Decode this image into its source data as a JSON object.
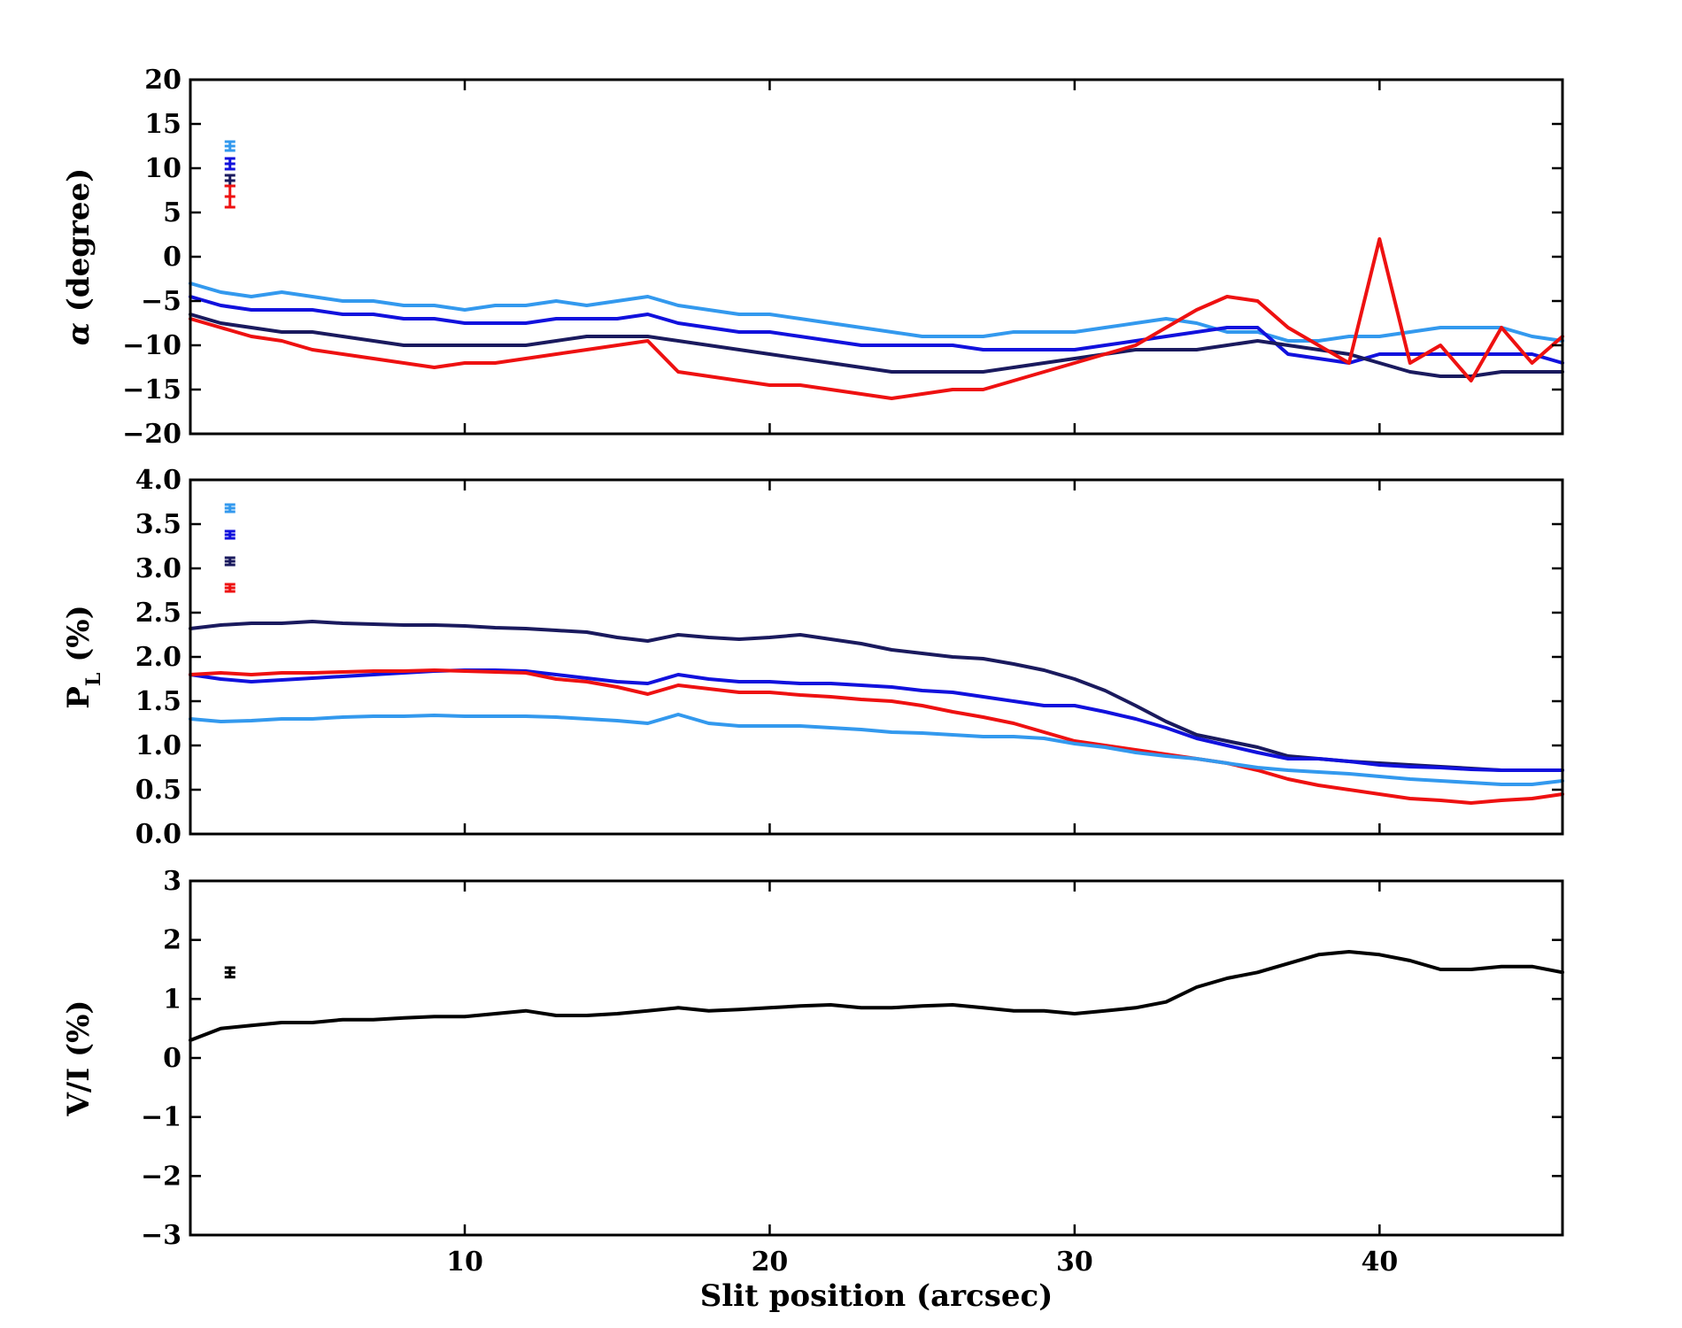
{
  "chart_data": [
    {
      "type": "line",
      "id": "alpha",
      "ylabel_parts": [
        "α",
        " (degree)"
      ],
      "xlim": [
        1,
        46
      ],
      "ylim": [
        -20,
        20
      ],
      "yticks": [
        -20,
        -15,
        -10,
        -5,
        0,
        5,
        10,
        15,
        20
      ],
      "yticklabels": [
        "−20",
        "−15",
        "−10",
        "−5",
        "0",
        "5",
        "10",
        "15",
        "20"
      ],
      "xticks": [
        10,
        20,
        30,
        40
      ],
      "show_xticklabels": false,
      "series": [
        {
          "name": "light-blue",
          "color": "#3399ee",
          "x": [
            1,
            2,
            3,
            4,
            5,
            6,
            7,
            8,
            9,
            10,
            11,
            12,
            13,
            14,
            15,
            16,
            17,
            18,
            19,
            20,
            21,
            22,
            23,
            24,
            25,
            26,
            27,
            28,
            29,
            30,
            31,
            32,
            33,
            34,
            35,
            36,
            37,
            38,
            39,
            40,
            41,
            42,
            43,
            44,
            45,
            46
          ],
          "y": [
            -3,
            -4,
            -4.5,
            -4,
            -4.5,
            -5,
            -5,
            -5.5,
            -5.5,
            -6,
            -5.5,
            -5.5,
            -5,
            -5.5,
            -5,
            -4.5,
            -5.5,
            -6,
            -6.5,
            -6.5,
            -7,
            -7.5,
            -8,
            -8.5,
            -9,
            -9,
            -9,
            -8.5,
            -8.5,
            -8.5,
            -8,
            -7.5,
            -7,
            -7.5,
            -8.5,
            -8.5,
            -9.5,
            -9.5,
            -9,
            -9,
            -8.5,
            -8,
            -8,
            -8,
            -9,
            -9.5
          ]
        },
        {
          "name": "blue",
          "color": "#1111dd",
          "x": [
            1,
            2,
            3,
            4,
            5,
            6,
            7,
            8,
            9,
            10,
            11,
            12,
            13,
            14,
            15,
            16,
            17,
            18,
            19,
            20,
            21,
            22,
            23,
            24,
            25,
            26,
            27,
            28,
            29,
            30,
            31,
            32,
            33,
            34,
            35,
            36,
            37,
            38,
            39,
            40,
            41,
            42,
            43,
            44,
            45,
            46
          ],
          "y": [
            -4.5,
            -5.5,
            -6,
            -6,
            -6,
            -6.5,
            -6.5,
            -7,
            -7,
            -7.5,
            -7.5,
            -7.5,
            -7,
            -7,
            -7,
            -6.5,
            -7.5,
            -8,
            -8.5,
            -8.5,
            -9,
            -9.5,
            -10,
            -10,
            -10,
            -10,
            -10.5,
            -10.5,
            -10.5,
            -10.5,
            -10,
            -9.5,
            -9,
            -8.5,
            -8,
            -8,
            -11,
            -11.5,
            -12,
            -11,
            -11,
            -11,
            -11,
            -11,
            -11,
            -12
          ]
        },
        {
          "name": "navy",
          "color": "#1a1a5e",
          "x": [
            1,
            2,
            3,
            4,
            5,
            6,
            7,
            8,
            9,
            10,
            11,
            12,
            13,
            14,
            15,
            16,
            17,
            18,
            19,
            20,
            21,
            22,
            23,
            24,
            25,
            26,
            27,
            28,
            29,
            30,
            31,
            32,
            33,
            34,
            35,
            36,
            37,
            38,
            39,
            40,
            41,
            42,
            43,
            44,
            45,
            46
          ],
          "y": [
            -6.5,
            -7.5,
            -8,
            -8.5,
            -8.5,
            -9,
            -9.5,
            -10,
            -10,
            -10,
            -10,
            -10,
            -9.5,
            -9,
            -9,
            -9,
            -9.5,
            -10,
            -10.5,
            -11,
            -11.5,
            -12,
            -12.5,
            -13,
            -13,
            -13,
            -13,
            -12.5,
            -12,
            -11.5,
            -11,
            -10.5,
            -10.5,
            -10.5,
            -10,
            -9.5,
            -10,
            -10.5,
            -11,
            -12,
            -13,
            -13.5,
            -13.5,
            -13,
            -13,
            -13
          ]
        },
        {
          "name": "red",
          "color": "#ee1111",
          "x": [
            1,
            2,
            3,
            4,
            5,
            6,
            7,
            8,
            9,
            10,
            11,
            12,
            13,
            14,
            15,
            16,
            17,
            18,
            19,
            20,
            21,
            22,
            23,
            24,
            25,
            26,
            27,
            28,
            29,
            30,
            31,
            32,
            33,
            34,
            35,
            36,
            37,
            38,
            39,
            40,
            41,
            42,
            43,
            44,
            45,
            46
          ],
          "y": [
            -7,
            -8,
            -9,
            -9.5,
            -10.5,
            -11,
            -11.5,
            -12,
            -12.5,
            -12,
            -12,
            -11.5,
            -11,
            -10.5,
            -10,
            -9.5,
            -13,
            -13.5,
            -14,
            -14.5,
            -14.5,
            -15,
            -15.5,
            -16,
            -15.5,
            -15,
            -15,
            -14,
            -13,
            -12,
            -11,
            -10,
            -8,
            -6,
            -4.5,
            -5,
            -8,
            -10,
            -12,
            2,
            -12,
            -10,
            -14,
            -8,
            -12,
            -9
          ]
        }
      ],
      "errorbars": [
        {
          "color": "#3399ee",
          "y": 12.5,
          "err": 0.5
        },
        {
          "color": "#1111dd",
          "y": 10.5,
          "err": 0.6
        },
        {
          "color": "#1a1a5e",
          "y": 8.6,
          "err": 0.6
        },
        {
          "color": "#ee1111",
          "y": 6.8,
          "err": 1.2
        }
      ],
      "errorbar_x": 2.3
    },
    {
      "type": "line",
      "id": "polarization",
      "ylabel_parts": [
        "P",
        "L",
        " (%)"
      ],
      "xlim": [
        1,
        46
      ],
      "ylim": [
        0,
        4
      ],
      "yticks": [
        0,
        0.5,
        1,
        1.5,
        2,
        2.5,
        3,
        3.5,
        4
      ],
      "yticklabels": [
        "0.0",
        "0.5",
        "1.0",
        "1.5",
        "2.0",
        "2.5",
        "3.0",
        "3.5",
        "4.0"
      ],
      "xticks": [
        10,
        20,
        30,
        40
      ],
      "show_xticklabels": false,
      "series": [
        {
          "name": "navy",
          "color": "#1a1a5e",
          "x": [
            1,
            2,
            3,
            4,
            5,
            6,
            7,
            8,
            9,
            10,
            11,
            12,
            13,
            14,
            15,
            16,
            17,
            18,
            19,
            20,
            21,
            22,
            23,
            24,
            25,
            26,
            27,
            28,
            29,
            30,
            31,
            32,
            33,
            34,
            35,
            36,
            37,
            38,
            39,
            40,
            41,
            42,
            43,
            44,
            45,
            46
          ],
          "y": [
            2.32,
            2.36,
            2.38,
            2.38,
            2.4,
            2.38,
            2.37,
            2.36,
            2.36,
            2.35,
            2.33,
            2.32,
            2.3,
            2.28,
            2.22,
            2.18,
            2.25,
            2.22,
            2.2,
            2.22,
            2.25,
            2.2,
            2.15,
            2.08,
            2.04,
            2.0,
            1.98,
            1.92,
            1.85,
            1.75,
            1.62,
            1.45,
            1.27,
            1.12,
            1.05,
            0.98,
            0.88,
            0.85,
            0.82,
            0.8,
            0.78,
            0.76,
            0.74,
            0.72,
            0.72,
            0.72
          ]
        },
        {
          "name": "blue",
          "color": "#1111dd",
          "x": [
            1,
            2,
            3,
            4,
            5,
            6,
            7,
            8,
            9,
            10,
            11,
            12,
            13,
            14,
            15,
            16,
            17,
            18,
            19,
            20,
            21,
            22,
            23,
            24,
            25,
            26,
            27,
            28,
            29,
            30,
            31,
            32,
            33,
            34,
            35,
            36,
            37,
            38,
            39,
            40,
            41,
            42,
            43,
            44,
            45,
            46
          ],
          "y": [
            1.8,
            1.75,
            1.72,
            1.74,
            1.76,
            1.78,
            1.8,
            1.82,
            1.84,
            1.85,
            1.85,
            1.84,
            1.8,
            1.76,
            1.72,
            1.7,
            1.8,
            1.75,
            1.72,
            1.72,
            1.7,
            1.7,
            1.68,
            1.66,
            1.62,
            1.6,
            1.55,
            1.5,
            1.45,
            1.45,
            1.38,
            1.3,
            1.2,
            1.08,
            1.0,
            0.92,
            0.85,
            0.85,
            0.82,
            0.78,
            0.76,
            0.75,
            0.73,
            0.72,
            0.72,
            0.72
          ]
        },
        {
          "name": "red",
          "color": "#ee1111",
          "x": [
            1,
            2,
            3,
            4,
            5,
            6,
            7,
            8,
            9,
            10,
            11,
            12,
            13,
            14,
            15,
            16,
            17,
            18,
            19,
            20,
            21,
            22,
            23,
            24,
            25,
            26,
            27,
            28,
            29,
            30,
            31,
            32,
            33,
            34,
            35,
            36,
            37,
            38,
            39,
            40,
            41,
            42,
            43,
            44,
            45,
            46
          ],
          "y": [
            1.8,
            1.82,
            1.8,
            1.82,
            1.82,
            1.83,
            1.84,
            1.84,
            1.85,
            1.84,
            1.83,
            1.82,
            1.75,
            1.72,
            1.66,
            1.58,
            1.68,
            1.64,
            1.6,
            1.6,
            1.57,
            1.55,
            1.52,
            1.5,
            1.45,
            1.38,
            1.32,
            1.25,
            1.15,
            1.05,
            1.0,
            0.95,
            0.9,
            0.85,
            0.8,
            0.72,
            0.62,
            0.55,
            0.5,
            0.45,
            0.4,
            0.38,
            0.35,
            0.38,
            0.4,
            0.45
          ]
        },
        {
          "name": "light-blue",
          "color": "#3399ee",
          "x": [
            1,
            2,
            3,
            4,
            5,
            6,
            7,
            8,
            9,
            10,
            11,
            12,
            13,
            14,
            15,
            16,
            17,
            18,
            19,
            20,
            21,
            22,
            23,
            24,
            25,
            26,
            27,
            28,
            29,
            30,
            31,
            32,
            33,
            34,
            35,
            36,
            37,
            38,
            39,
            40,
            41,
            42,
            43,
            44,
            45,
            46
          ],
          "y": [
            1.3,
            1.27,
            1.28,
            1.3,
            1.3,
            1.32,
            1.33,
            1.33,
            1.34,
            1.33,
            1.33,
            1.33,
            1.32,
            1.3,
            1.28,
            1.25,
            1.35,
            1.25,
            1.22,
            1.22,
            1.22,
            1.2,
            1.18,
            1.15,
            1.14,
            1.12,
            1.1,
            1.1,
            1.08,
            1.02,
            0.98,
            0.92,
            0.88,
            0.85,
            0.8,
            0.75,
            0.72,
            0.7,
            0.68,
            0.65,
            0.62,
            0.6,
            0.58,
            0.56,
            0.56,
            0.6
          ]
        }
      ],
      "errorbars": [
        {
          "color": "#3399ee",
          "y": 3.68,
          "err": 0.04
        },
        {
          "color": "#1111dd",
          "y": 3.38,
          "err": 0.04
        },
        {
          "color": "#1a1a5e",
          "y": 3.08,
          "err": 0.04
        },
        {
          "color": "#ee1111",
          "y": 2.78,
          "err": 0.04
        }
      ],
      "errorbar_x": 2.3
    },
    {
      "type": "line",
      "id": "circular",
      "ylabel_parts": [
        "V/I (%)"
      ],
      "xlabel": "Slit position (arcsec)",
      "xlim": [
        1,
        46
      ],
      "ylim": [
        -3,
        3
      ],
      "yticks": [
        -3,
        -2,
        -1,
        0,
        1,
        2,
        3
      ],
      "yticklabels": [
        "−3",
        "−2",
        "−1",
        "0",
        "1",
        "2",
        "3"
      ],
      "xticks": [
        10,
        20,
        30,
        40
      ],
      "xticklabels": [
        "10",
        "20",
        "30",
        "40"
      ],
      "show_xticklabels": true,
      "series": [
        {
          "name": "black",
          "color": "#000000",
          "x": [
            1,
            2,
            3,
            4,
            5,
            6,
            7,
            8,
            9,
            10,
            11,
            12,
            13,
            14,
            15,
            16,
            17,
            18,
            19,
            20,
            21,
            22,
            23,
            24,
            25,
            26,
            27,
            28,
            29,
            30,
            31,
            32,
            33,
            34,
            35,
            36,
            37,
            38,
            39,
            40,
            41,
            42,
            43,
            44,
            45,
            46
          ],
          "y": [
            0.3,
            0.5,
            0.55,
            0.6,
            0.6,
            0.65,
            0.65,
            0.68,
            0.7,
            0.7,
            0.75,
            0.8,
            0.72,
            0.72,
            0.75,
            0.8,
            0.85,
            0.8,
            0.82,
            0.85,
            0.88,
            0.9,
            0.85,
            0.85,
            0.88,
            0.9,
            0.85,
            0.8,
            0.8,
            0.75,
            0.8,
            0.85,
            0.95,
            1.2,
            1.35,
            1.45,
            1.6,
            1.75,
            1.8,
            1.75,
            1.65,
            1.5,
            1.5,
            1.55,
            1.55,
            1.45
          ]
        }
      ],
      "errorbars": [
        {
          "color": "#000000",
          "y": 1.45,
          "err": 0.08
        }
      ],
      "errorbar_x": 2.3
    }
  ]
}
